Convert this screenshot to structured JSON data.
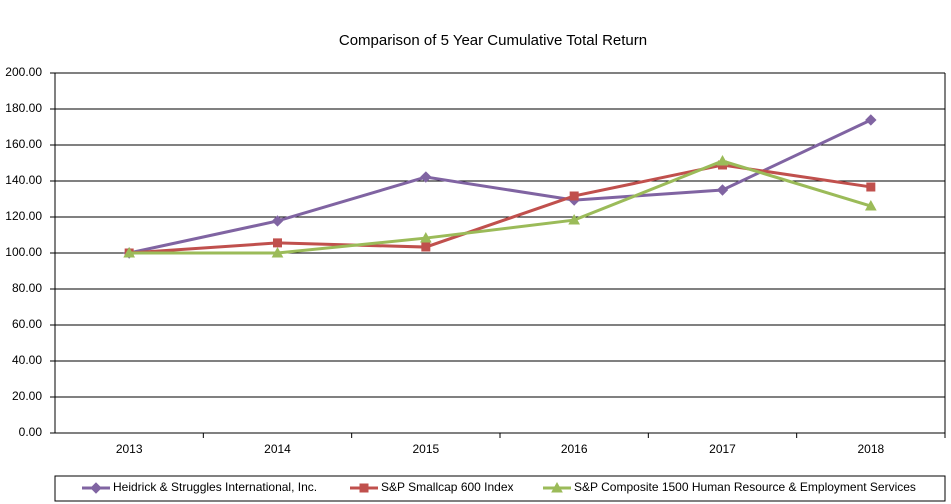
{
  "chart_data": {
    "type": "line",
    "title": "Comparison of 5 Year Cumulative Total Return",
    "categories": [
      "2013",
      "2014",
      "2015",
      "2016",
      "2017",
      "2018"
    ],
    "series": [
      {
        "name": "Heidrick & Struggles International, Inc.",
        "color": "#8064a2",
        "marker": "diamond",
        "values": [
          100,
          117.8,
          142.2,
          129.4,
          135,
          173.9
        ]
      },
      {
        "name": "S&P Smallcap 600 Index",
        "color": "#c0504d",
        "marker": "square",
        "values": [
          100,
          105.6,
          103.3,
          131.7,
          148.9,
          136.7
        ]
      },
      {
        "name": "S&P Composite 1500 Human Resource & Employment Services",
        "color": "#9bbb59",
        "marker": "triangle",
        "values": [
          100,
          100,
          108.3,
          118.3,
          151.1,
          126.1
        ]
      }
    ],
    "ylim": [
      0,
      200
    ],
    "yticks": [
      {
        "value": 0,
        "label": "0.00"
      },
      {
        "value": 20,
        "label": "20.00"
      },
      {
        "value": 40,
        "label": "40.00"
      },
      {
        "value": 60,
        "label": "60.00"
      },
      {
        "value": 80,
        "label": "80.00"
      },
      {
        "value": 100,
        "label": "100.00"
      },
      {
        "value": 120,
        "label": "120.00"
      },
      {
        "value": 140,
        "label": "140.00"
      },
      {
        "value": 160,
        "label": "160.00"
      },
      {
        "value": 180,
        "label": "180.00"
      },
      {
        "value": 200,
        "label": "200.00"
      }
    ],
    "grid": true,
    "legend": "bottom"
  }
}
